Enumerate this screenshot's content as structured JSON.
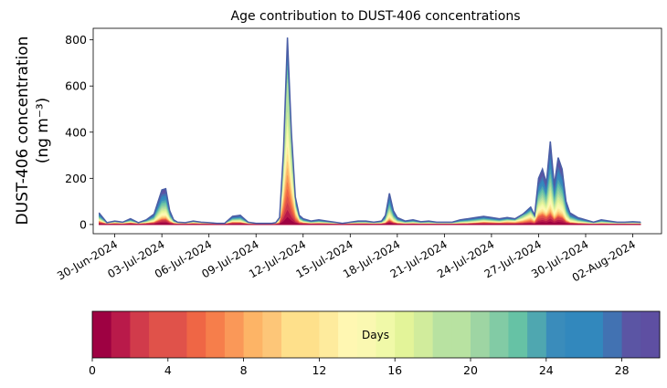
{
  "chart_data": [
    {
      "type": "area",
      "title": "Age contribution to DUST-406 concentrations",
      "ylabel_line1": "DUST-406 concentration",
      "ylabel_line2": "(ng m⁻³)",
      "xlabel": "",
      "x_start": "2024-06-29",
      "x_end": "2024-08-03",
      "xlim": [
        "2024-06-28T15:00",
        "2024-08-03T20:00"
      ],
      "ylim": [
        -40,
        850
      ],
      "x_ticks": [
        "30-Jun-2024",
        "03-Jul-2024",
        "06-Jul-2024",
        "09-Jul-2024",
        "12-Jul-2024",
        "15-Jul-2024",
        "18-Jul-2024",
        "21-Jul-2024",
        "24-Jul-2024",
        "27-Jul-2024",
        "30-Jul-2024",
        "02-Aug-2024"
      ],
      "y_ticks": [
        0,
        200,
        400,
        600,
        800
      ],
      "grid": false,
      "legend": "none",
      "series_description": "Stacked age-contribution lines for ages 0-30 days; top line = total concentration",
      "x": [
        "2024-06-29T00:00",
        "2024-06-29T12:00",
        "2024-06-30T00:00",
        "2024-06-30T12:00",
        "2024-07-01T00:00",
        "2024-07-01T12:00",
        "2024-07-02T00:00",
        "2024-07-02T12:00",
        "2024-07-03T00:00",
        "2024-07-03T06:00",
        "2024-07-03T12:00",
        "2024-07-03T18:00",
        "2024-07-04T00:00",
        "2024-07-04T12:00",
        "2024-07-05T00:00",
        "2024-07-05T12:00",
        "2024-07-06T00:00",
        "2024-07-06T12:00",
        "2024-07-07T00:00",
        "2024-07-07T12:00",
        "2024-07-08T00:00",
        "2024-07-08T12:00",
        "2024-07-09T00:00",
        "2024-07-09T12:00",
        "2024-07-10T00:00",
        "2024-07-10T06:00",
        "2024-07-10T12:00",
        "2024-07-10T18:00",
        "2024-07-11T00:00",
        "2024-07-11T06:00",
        "2024-07-11T12:00",
        "2024-07-11T18:00",
        "2024-07-12T00:00",
        "2024-07-12T12:00",
        "2024-07-13T00:00",
        "2024-07-13T12:00",
        "2024-07-14T00:00",
        "2024-07-14T12:00",
        "2024-07-15T00:00",
        "2024-07-15T12:00",
        "2024-07-16T00:00",
        "2024-07-16T12:00",
        "2024-07-17T00:00",
        "2024-07-17T06:00",
        "2024-07-17T12:00",
        "2024-07-17T18:00",
        "2024-07-18T00:00",
        "2024-07-18T12:00",
        "2024-07-19T00:00",
        "2024-07-19T12:00",
        "2024-07-20T00:00",
        "2024-07-20T12:00",
        "2024-07-21T00:00",
        "2024-07-21T12:00",
        "2024-07-22T00:00",
        "2024-07-22T12:00",
        "2024-07-23T00:00",
        "2024-07-23T12:00",
        "2024-07-24T00:00",
        "2024-07-24T12:00",
        "2024-07-25T00:00",
        "2024-07-25T12:00",
        "2024-07-26T00:00",
        "2024-07-26T06:00",
        "2024-07-26T12:00",
        "2024-07-26T18:00",
        "2024-07-27T00:00",
        "2024-07-27T06:00",
        "2024-07-27T12:00",
        "2024-07-27T18:00",
        "2024-07-28T00:00",
        "2024-07-28T06:00",
        "2024-07-28T12:00",
        "2024-07-28T18:00",
        "2024-07-29T00:00",
        "2024-07-29T12:00",
        "2024-07-30T00:00",
        "2024-07-30T12:00",
        "2024-07-31T00:00",
        "2024-07-31T12:00",
        "2024-08-01T00:00",
        "2024-08-01T12:00",
        "2024-08-02T00:00",
        "2024-08-02T12:00"
      ],
      "total": [
        50,
        8,
        15,
        10,
        25,
        8,
        20,
        45,
        150,
        155,
        60,
        20,
        10,
        8,
        15,
        10,
        8,
        5,
        5,
        35,
        40,
        10,
        5,
        5,
        5,
        8,
        30,
        320,
        810,
        400,
        120,
        40,
        25,
        15,
        20,
        15,
        10,
        5,
        10,
        15,
        15,
        10,
        15,
        40,
        135,
        60,
        30,
        15,
        20,
        12,
        15,
        10,
        10,
        10,
        20,
        25,
        30,
        35,
        30,
        25,
        30,
        25,
        45,
        60,
        75,
        40,
        200,
        240,
        180,
        360,
        170,
        290,
        240,
        100,
        50,
        30,
        20,
        10,
        20,
        15,
        10,
        10,
        12,
        10
      ],
      "recent_fraction": [
        0.2,
        0.3,
        0.3,
        0.3,
        0.2,
        0.3,
        0.2,
        0.15,
        0.12,
        0.12,
        0.15,
        0.2,
        0.3,
        0.3,
        0.3,
        0.3,
        0.3,
        0.3,
        0.3,
        0.2,
        0.15,
        0.2,
        0.3,
        0.3,
        0.3,
        0.3,
        0.4,
        0.6,
        0.6,
        0.6,
        0.4,
        0.25,
        0.2,
        0.15,
        0.15,
        0.15,
        0.15,
        0.2,
        0.2,
        0.15,
        0.15,
        0.15,
        0.15,
        0.1,
        0.1,
        0.1,
        0.1,
        0.1,
        0.1,
        0.1,
        0.1,
        0.1,
        0.1,
        0.1,
        0.1,
        0.1,
        0.15,
        0.2,
        0.2,
        0.2,
        0.3,
        0.4,
        0.7,
        0.85,
        0.85,
        0.6,
        0.15,
        0.15,
        0.15,
        0.1,
        0.1,
        0.1,
        0.1,
        0.1,
        0.1,
        0.1,
        0.1,
        0.1,
        0.1,
        0.1,
        0.1,
        0.1,
        0.1,
        0.1
      ]
    },
    {
      "type": "colorbar",
      "label": "Days",
      "range": [
        0,
        30
      ],
      "ticks": [
        0,
        4,
        8,
        12,
        16,
        20,
        24,
        28
      ],
      "levels": 30,
      "colormap": "Spectral",
      "colors": [
        "#9e0142",
        "#b91a4a",
        "#d13b4b",
        "#e0524a",
        "#ef6645",
        "#f67e4b",
        "#fa9858",
        "#fdb466",
        "#fdc678",
        "#fee08b",
        "#feeb9d",
        "#fff7b2",
        "#faf8b1",
        "#f0f9a8",
        "#e3f499",
        "#d1ec9c",
        "#b8e2a1",
        "#9ed5a3",
        "#82cba5",
        "#66c2a5",
        "#4fa7b0",
        "#3a8cbb",
        "#3288bd",
        "#4272b2",
        "#5b55a4",
        "#5e4fa2"
      ]
    }
  ]
}
